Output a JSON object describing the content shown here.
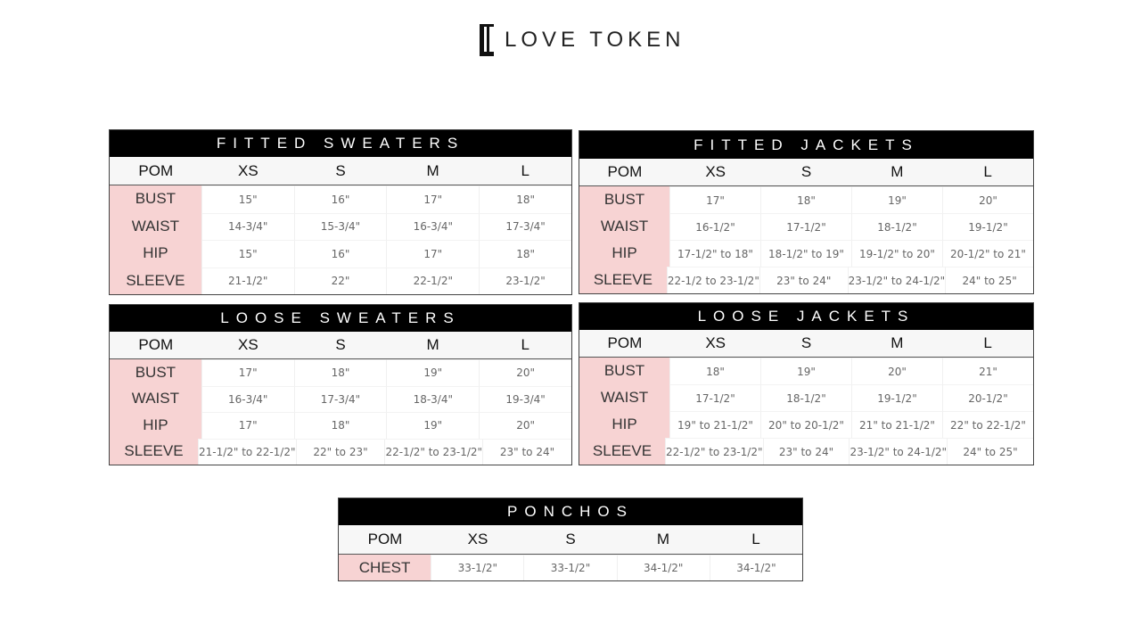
{
  "brand": {
    "name": "LOVE TOKEN",
    "logo_monogram": "LT"
  },
  "tables": [
    {
      "title": "FITTED SWEATERS",
      "columns": [
        "POM",
        "XS",
        "S",
        "M",
        "L"
      ],
      "rows": [
        [
          "BUST",
          "15\"",
          "16\"",
          "17\"",
          "18\""
        ],
        [
          "WAIST",
          "14-3/4\"",
          "15-3/4\"",
          "16-3/4\"",
          "17-3/4\""
        ],
        [
          "HIP",
          "15\"",
          "16\"",
          "17\"",
          "18\""
        ],
        [
          "SLEEVE",
          "21-1/2\"",
          "22\"",
          "22-1/2\"",
          "23-1/2\""
        ]
      ]
    },
    {
      "title": "FITTED JACKETS",
      "columns": [
        "POM",
        "XS",
        "S",
        "M",
        "L"
      ],
      "rows": [
        [
          "BUST",
          "17\"",
          "18\"",
          "19\"",
          "20\""
        ],
        [
          "WAIST",
          "16-1/2\"",
          "17-1/2\"",
          "18-1/2\"",
          "19-1/2\""
        ],
        [
          "HIP",
          "17-1/2\" to 18\"",
          "18-1/2\" to 19\"",
          "19-1/2\" to 20\"",
          "20-1/2\" to 21\""
        ],
        [
          "SLEEVE",
          "22-1/2 to 23-1/2\"",
          "23\" to 24\"",
          "23-1/2\" to 24-1/2\"",
          "24\" to 25\""
        ]
      ]
    },
    {
      "title": "LOOSE SWEATERS",
      "columns": [
        "POM",
        "XS",
        "S",
        "M",
        "L"
      ],
      "rows": [
        [
          "BUST",
          "17\"",
          "18\"",
          "19\"",
          "20\""
        ],
        [
          "WAIST",
          "16-3/4\"",
          "17-3/4\"",
          "18-3/4\"",
          "19-3/4\""
        ],
        [
          "HIP",
          "17\"",
          "18\"",
          "19\"",
          "20\""
        ],
        [
          "SLEEVE",
          "21-1/2\" to 22-1/2\"",
          "22\" to 23\"",
          "22-1/2\" to 23-1/2\"",
          "23\" to 24\""
        ]
      ]
    },
    {
      "title": "LOOSE JACKETS",
      "columns": [
        "POM",
        "XS",
        "S",
        "M",
        "L"
      ],
      "rows": [
        [
          "BUST",
          "18\"",
          "19\"",
          "20\"",
          "21\""
        ],
        [
          "WAIST",
          "17-1/2\"",
          "18-1/2\"",
          "19-1/2\"",
          "20-1/2\""
        ],
        [
          "HIP",
          "19\" to 21-1/2\"",
          "20\" to 20-1/2\"",
          "21\" to 21-1/2\"",
          "22\" to 22-1/2\""
        ],
        [
          "SLEEVE",
          "22-1/2\" to 23-1/2\"",
          "23\" to 24\"",
          "23-1/2\" to 24-1/2\"",
          "24\" to 25\""
        ]
      ]
    },
    {
      "title": "PONCHOS",
      "columns": [
        "POM",
        "XS",
        "S",
        "M",
        "L"
      ],
      "rows": [
        [
          "CHEST",
          "33-1/2\"",
          "33-1/2\"",
          "34-1/2\"",
          "34-1/2\""
        ]
      ]
    }
  ],
  "colors": {
    "title_bar": "#000000",
    "pom_cell": "#f7d3d3"
  }
}
